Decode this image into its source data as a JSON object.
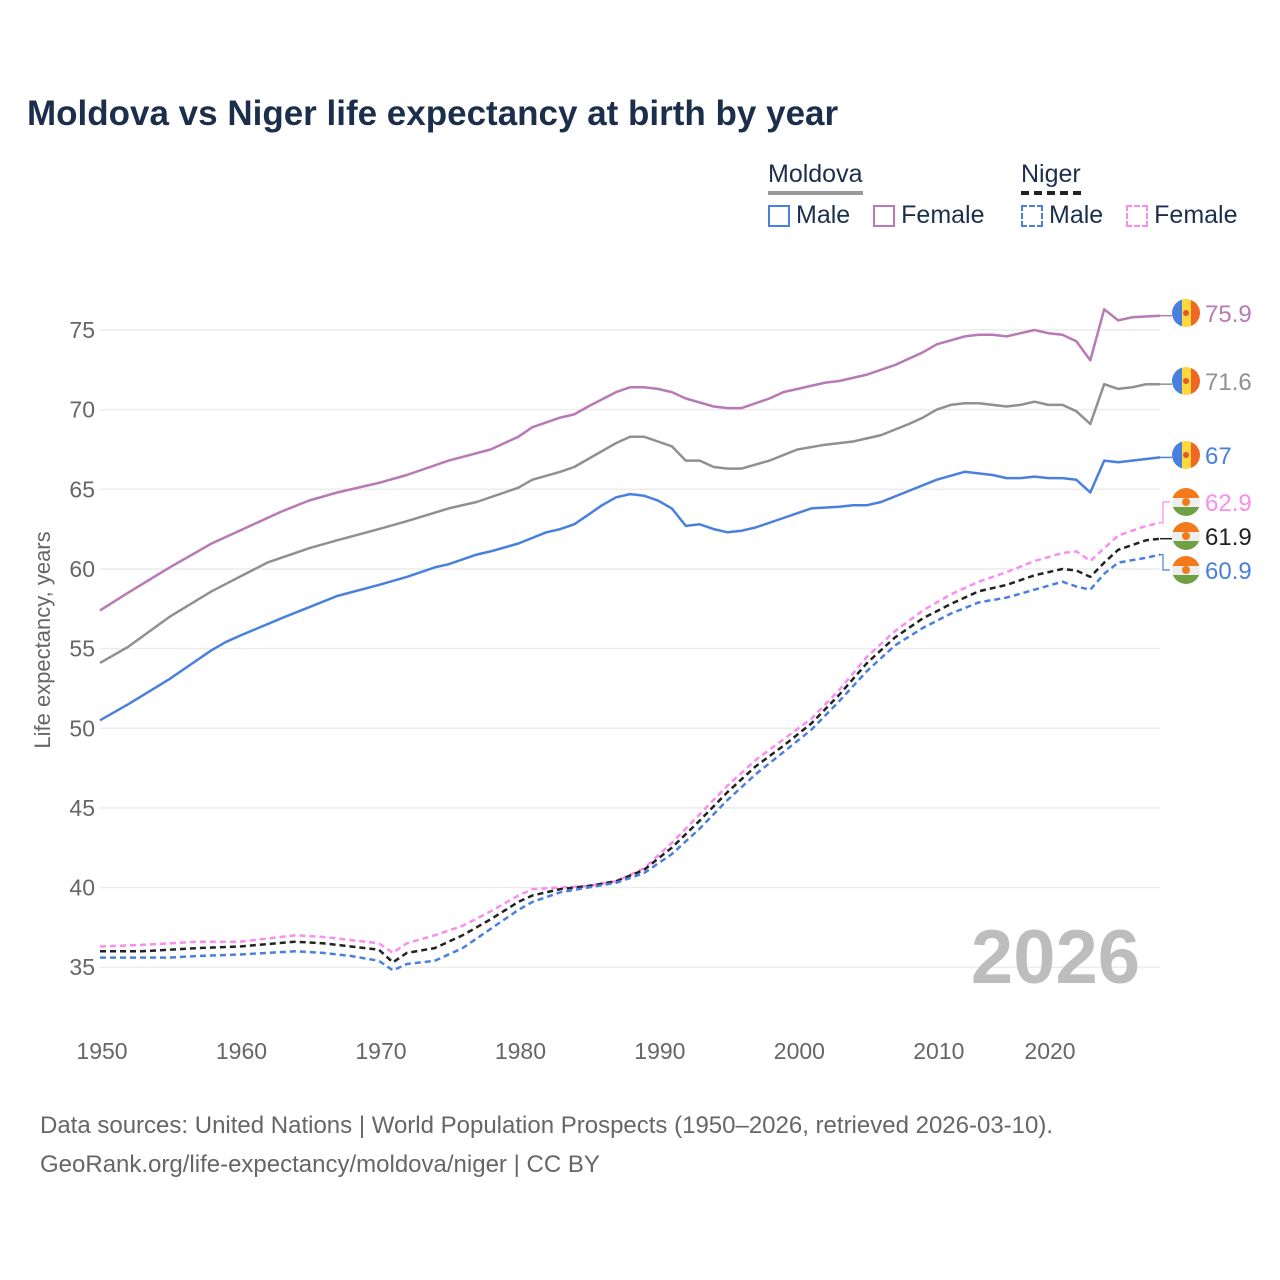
{
  "chart_data": {
    "type": "line",
    "title": "Moldova vs Niger life expectancy at birth by year",
    "xlabel": "",
    "ylabel": "Life expectancy, years",
    "xlim": [
      1950,
      2026
    ],
    "ylim": [
      32,
      78
    ],
    "x_ticks": [
      1950,
      1960,
      1970,
      1980,
      1990,
      2000,
      2010,
      2020
    ],
    "y_ticks": [
      35,
      40,
      45,
      50,
      55,
      60,
      65,
      70,
      75
    ],
    "grid": true,
    "watermark_year": "2026",
    "legend": {
      "placement": "top-right",
      "groups": [
        {
          "name": "Moldova",
          "items": [
            "Male",
            "Female"
          ]
        },
        {
          "name": "Niger",
          "items": [
            "Male",
            "Female"
          ]
        }
      ]
    },
    "series": [
      {
        "name": "Moldova Female",
        "country": "Moldova",
        "color": "#b77ab5",
        "dashed": false,
        "end_label": "75.9",
        "flag": "moldova",
        "points": [
          [
            1950,
            57.4
          ],
          [
            1952,
            58.5
          ],
          [
            1955,
            60.1
          ],
          [
            1958,
            61.6
          ],
          [
            1960,
            62.4
          ],
          [
            1963,
            63.6
          ],
          [
            1965,
            64.3
          ],
          [
            1967,
            64.8
          ],
          [
            1970,
            65.4
          ],
          [
            1972,
            65.9
          ],
          [
            1975,
            66.8
          ],
          [
            1978,
            67.5
          ],
          [
            1980,
            68.3
          ],
          [
            1981,
            68.9
          ],
          [
            1983,
            69.5
          ],
          [
            1984,
            69.7
          ],
          [
            1985,
            70.2
          ],
          [
            1987,
            71.1
          ],
          [
            1988,
            71.4
          ],
          [
            1989,
            71.4
          ],
          [
            1990,
            71.3
          ],
          [
            1991,
            71.1
          ],
          [
            1992,
            70.7
          ],
          [
            1994,
            70.2
          ],
          [
            1995,
            70.1
          ],
          [
            1996,
            70.1
          ],
          [
            1998,
            70.7
          ],
          [
            1999,
            71.1
          ],
          [
            2002,
            71.7
          ],
          [
            2003,
            71.8
          ],
          [
            2005,
            72.2
          ],
          [
            2007,
            72.8
          ],
          [
            2009,
            73.6
          ],
          [
            2010,
            74.1
          ],
          [
            2012,
            74.6
          ],
          [
            2013,
            74.7
          ],
          [
            2014,
            74.7
          ],
          [
            2015,
            74.6
          ],
          [
            2017,
            75.0
          ],
          [
            2018,
            74.8
          ],
          [
            2019,
            74.7
          ],
          [
            2020,
            74.3
          ],
          [
            2021,
            73.1
          ],
          [
            2022,
            76.3
          ],
          [
            2023,
            75.6
          ],
          [
            2024,
            75.8
          ],
          [
            2026,
            75.9
          ]
        ]
      },
      {
        "name": "Moldova Total",
        "country": "Moldova",
        "color": "#909090",
        "dashed": false,
        "end_label": "71.6",
        "flag": "moldova",
        "points": [
          [
            1950,
            54.1
          ],
          [
            1952,
            55.1
          ],
          [
            1955,
            57.0
          ],
          [
            1958,
            58.6
          ],
          [
            1960,
            59.5
          ],
          [
            1962,
            60.4
          ],
          [
            1965,
            61.3
          ],
          [
            1967,
            61.8
          ],
          [
            1970,
            62.5
          ],
          [
            1972,
            63.0
          ],
          [
            1975,
            63.8
          ],
          [
            1977,
            64.2
          ],
          [
            1980,
            65.1
          ],
          [
            1981,
            65.6
          ],
          [
            1983,
            66.1
          ],
          [
            1984,
            66.4
          ],
          [
            1985,
            66.9
          ],
          [
            1987,
            67.9
          ],
          [
            1988,
            68.3
          ],
          [
            1989,
            68.3
          ],
          [
            1990,
            68.0
          ],
          [
            1991,
            67.7
          ],
          [
            1992,
            66.8
          ],
          [
            1993,
            66.8
          ],
          [
            1994,
            66.4
          ],
          [
            1995,
            66.3
          ],
          [
            1996,
            66.3
          ],
          [
            1998,
            66.8
          ],
          [
            2000,
            67.5
          ],
          [
            2002,
            67.8
          ],
          [
            2004,
            68.0
          ],
          [
            2006,
            68.4
          ],
          [
            2008,
            69.1
          ],
          [
            2009,
            69.5
          ],
          [
            2010,
            70.0
          ],
          [
            2011,
            70.3
          ],
          [
            2012,
            70.4
          ],
          [
            2013,
            70.4
          ],
          [
            2015,
            70.2
          ],
          [
            2016,
            70.3
          ],
          [
            2017,
            70.5
          ],
          [
            2018,
            70.3
          ],
          [
            2019,
            70.3
          ],
          [
            2020,
            69.9
          ],
          [
            2021,
            69.1
          ],
          [
            2022,
            71.6
          ],
          [
            2023,
            71.3
          ],
          [
            2024,
            71.4
          ],
          [
            2025,
            71.6
          ],
          [
            2026,
            71.6
          ]
        ]
      },
      {
        "name": "Moldova Male",
        "country": "Moldova",
        "color": "#4a80dd",
        "dashed": false,
        "end_label": "67",
        "flag": "moldova",
        "points": [
          [
            1950,
            50.5
          ],
          [
            1952,
            51.5
          ],
          [
            1955,
            53.1
          ],
          [
            1958,
            54.9
          ],
          [
            1959,
            55.4
          ],
          [
            1960,
            55.8
          ],
          [
            1963,
            56.9
          ],
          [
            1965,
            57.6
          ],
          [
            1967,
            58.3
          ],
          [
            1970,
            59.0
          ],
          [
            1972,
            59.5
          ],
          [
            1974,
            60.1
          ],
          [
            1975,
            60.3
          ],
          [
            1977,
            60.9
          ],
          [
            1978,
            61.1
          ],
          [
            1980,
            61.6
          ],
          [
            1982,
            62.3
          ],
          [
            1983,
            62.5
          ],
          [
            1984,
            62.8
          ],
          [
            1985,
            63.4
          ],
          [
            1986,
            64.0
          ],
          [
            1987,
            64.5
          ],
          [
            1988,
            64.7
          ],
          [
            1989,
            64.6
          ],
          [
            1990,
            64.3
          ],
          [
            1991,
            63.8
          ],
          [
            1992,
            62.7
          ],
          [
            1993,
            62.8
          ],
          [
            1994,
            62.5
          ],
          [
            1995,
            62.3
          ],
          [
            1996,
            62.4
          ],
          [
            1997,
            62.6
          ],
          [
            1999,
            63.2
          ],
          [
            2000,
            63.5
          ],
          [
            2001,
            63.8
          ],
          [
            2003,
            63.9
          ],
          [
            2004,
            64.0
          ],
          [
            2005,
            64.0
          ],
          [
            2006,
            64.2
          ],
          [
            2008,
            64.9
          ],
          [
            2010,
            65.6
          ],
          [
            2012,
            66.1
          ],
          [
            2014,
            65.9
          ],
          [
            2015,
            65.7
          ],
          [
            2016,
            65.7
          ],
          [
            2017,
            65.8
          ],
          [
            2018,
            65.7
          ],
          [
            2019,
            65.7
          ],
          [
            2020,
            65.6
          ],
          [
            2021,
            64.8
          ],
          [
            2022,
            66.8
          ],
          [
            2023,
            66.7
          ],
          [
            2024,
            66.8
          ],
          [
            2025,
            66.9
          ],
          [
            2026,
            67.0
          ]
        ]
      },
      {
        "name": "Niger Female",
        "country": "Niger",
        "color": "#f98ef0",
        "dashed": true,
        "end_label": "62.9",
        "flag": "niger",
        "points": [
          [
            1950,
            36.3
          ],
          [
            1953,
            36.4
          ],
          [
            1957,
            36.6
          ],
          [
            1960,
            36.6
          ],
          [
            1964,
            37.0
          ],
          [
            1966,
            36.9
          ],
          [
            1968,
            36.7
          ],
          [
            1970,
            36.5
          ],
          [
            1971,
            35.9
          ],
          [
            1972,
            36.5
          ],
          [
            1974,
            37.0
          ],
          [
            1976,
            37.6
          ],
          [
            1978,
            38.5
          ],
          [
            1980,
            39.5
          ],
          [
            1981,
            39.9
          ],
          [
            1983,
            40.0
          ],
          [
            1985,
            40.1
          ],
          [
            1987,
            40.4
          ],
          [
            1989,
            41.2
          ],
          [
            1991,
            42.8
          ],
          [
            1993,
            44.6
          ],
          [
            1995,
            46.4
          ],
          [
            1997,
            48.0
          ],
          [
            1999,
            49.3
          ],
          [
            2001,
            50.6
          ],
          [
            2003,
            52.4
          ],
          [
            2005,
            54.5
          ],
          [
            2007,
            56.1
          ],
          [
            2009,
            57.4
          ],
          [
            2011,
            58.4
          ],
          [
            2013,
            59.2
          ],
          [
            2015,
            59.8
          ],
          [
            2017,
            60.5
          ],
          [
            2019,
            61.0
          ],
          [
            2020,
            61.1
          ],
          [
            2021,
            60.5
          ],
          [
            2022,
            61.3
          ],
          [
            2023,
            62.1
          ],
          [
            2025,
            62.7
          ],
          [
            2026,
            62.9
          ]
        ]
      },
      {
        "name": "Niger Total",
        "country": "Niger",
        "color": "#222222",
        "dashed": true,
        "end_label": "61.9",
        "flag": "niger",
        "points": [
          [
            1950,
            36.0
          ],
          [
            1953,
            36.0
          ],
          [
            1957,
            36.2
          ],
          [
            1960,
            36.3
          ],
          [
            1964,
            36.6
          ],
          [
            1966,
            36.5
          ],
          [
            1968,
            36.3
          ],
          [
            1970,
            36.1
          ],
          [
            1971,
            35.3
          ],
          [
            1972,
            35.9
          ],
          [
            1974,
            36.2
          ],
          [
            1976,
            37.0
          ],
          [
            1978,
            38.0
          ],
          [
            1980,
            39.1
          ],
          [
            1981,
            39.5
          ],
          [
            1983,
            39.9
          ],
          [
            1985,
            40.1
          ],
          [
            1987,
            40.4
          ],
          [
            1989,
            41.1
          ],
          [
            1991,
            42.5
          ],
          [
            1993,
            44.2
          ],
          [
            1995,
            46.0
          ],
          [
            1997,
            47.6
          ],
          [
            1999,
            48.9
          ],
          [
            2001,
            50.3
          ],
          [
            2003,
            52.1
          ],
          [
            2005,
            54.1
          ],
          [
            2007,
            55.7
          ],
          [
            2009,
            56.9
          ],
          [
            2011,
            57.8
          ],
          [
            2013,
            58.6
          ],
          [
            2015,
            59.0
          ],
          [
            2017,
            59.6
          ],
          [
            2019,
            60.0
          ],
          [
            2020,
            59.9
          ],
          [
            2021,
            59.5
          ],
          [
            2022,
            60.4
          ],
          [
            2023,
            61.2
          ],
          [
            2025,
            61.8
          ],
          [
            2026,
            61.9
          ]
        ]
      },
      {
        "name": "Niger Male",
        "country": "Niger",
        "color": "#4a80dd",
        "dashed": true,
        "end_label": "60.9",
        "flag": "niger",
        "points": [
          [
            1950,
            35.6
          ],
          [
            1953,
            35.6
          ],
          [
            1955,
            35.6
          ],
          [
            1957,
            35.7
          ],
          [
            1960,
            35.8
          ],
          [
            1964,
            36.0
          ],
          [
            1966,
            35.9
          ],
          [
            1968,
            35.7
          ],
          [
            1970,
            35.4
          ],
          [
            1971,
            34.8
          ],
          [
            1972,
            35.2
          ],
          [
            1974,
            35.4
          ],
          [
            1976,
            36.2
          ],
          [
            1978,
            37.4
          ],
          [
            1980,
            38.6
          ],
          [
            1981,
            39.1
          ],
          [
            1983,
            39.7
          ],
          [
            1985,
            40.0
          ],
          [
            1987,
            40.3
          ],
          [
            1989,
            40.9
          ],
          [
            1991,
            42.1
          ],
          [
            1993,
            43.7
          ],
          [
            1995,
            45.5
          ],
          [
            1997,
            47.1
          ],
          [
            1999,
            48.5
          ],
          [
            2001,
            49.9
          ],
          [
            2003,
            51.7
          ],
          [
            2005,
            53.6
          ],
          [
            2007,
            55.2
          ],
          [
            2009,
            56.3
          ],
          [
            2011,
            57.2
          ],
          [
            2013,
            57.9
          ],
          [
            2015,
            58.2
          ],
          [
            2017,
            58.7
          ],
          [
            2019,
            59.2
          ],
          [
            2020,
            58.9
          ],
          [
            2021,
            58.7
          ],
          [
            2022,
            59.7
          ],
          [
            2023,
            60.4
          ],
          [
            2025,
            60.7
          ],
          [
            2026,
            60.9
          ]
        ]
      }
    ],
    "source_note": "Data sources: United Nations | World Population Prospects (1950–2026, retrieved 2026-03-10).",
    "url_note": "GeoRank.org/life-expectancy/moldova/niger | CC BY"
  }
}
